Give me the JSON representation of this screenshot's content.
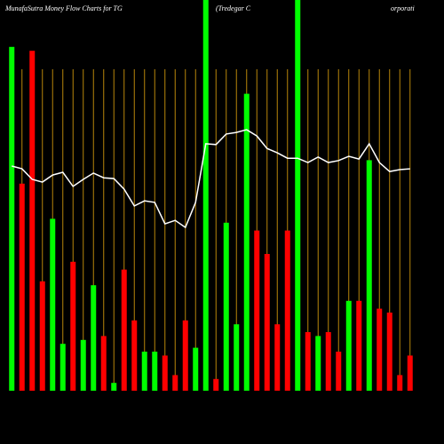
{
  "chart_data": {
    "type": "bar",
    "title": "MunafaSutra  Money Flow  Charts for TG",
    "subtitle": "(Tredegar C",
    "subtitle_tail": "orporati",
    "categories": [
      null,
      null,
      null,
      null,
      null,
      null,
      null,
      null,
      null,
      null,
      null,
      null,
      null,
      null,
      null,
      null,
      null,
      null,
      null,
      null,
      null,
      null,
      null,
      null,
      null,
      null,
      null,
      null,
      null,
      null,
      null,
      null,
      null,
      null,
      null,
      null,
      null,
      null,
      null,
      null
    ],
    "values": [
      88,
      53,
      87,
      28,
      44,
      12,
      33,
      13,
      27,
      14,
      2,
      31,
      18,
      10,
      10,
      9,
      4,
      18,
      11,
      100,
      3,
      43,
      17,
      76,
      41,
      35,
      17,
      41,
      100,
      15,
      14,
      15,
      10,
      23,
      23,
      59,
      21,
      20,
      4,
      9
    ],
    "colors": [
      "#00ff00",
      "#ff0000",
      "#ff0000",
      "#ff0000",
      "#00ff00",
      "#00ff00",
      "#ff0000",
      "#00ff00",
      "#00ff00",
      "#ff0000",
      "#00ff00",
      "#ff0000",
      "#ff0000",
      "#00ff00",
      "#00ff00",
      "#ff0000",
      "#ff0000",
      "#ff0000",
      "#00ff00",
      "#00ff00",
      "#ff0000",
      "#00ff00",
      "#00ff00",
      "#00ff00",
      "#ff0000",
      "#ff0000",
      "#ff0000",
      "#ff0000",
      "#00ff00",
      "#ff0000",
      "#00ff00",
      "#ff0000",
      "#ff0000",
      "#00ff00",
      "#ff0000",
      "#00ff00",
      "#ff0000",
      "#ff0000",
      "#ff0000",
      "#ff0000"
    ],
    "line": {
      "color": "#ffffff",
      "values": [
        57.5,
        56.8,
        54.1,
        53.4,
        55.2,
        55.9,
        52.3,
        54.1,
        55.7,
        54.5,
        54.3,
        51.6,
        47.3,
        48.6,
        48.2,
        42.7,
        43.6,
        41.8,
        48.2,
        63.2,
        63.0,
        65.7,
        66.1,
        66.8,
        65.2,
        62.0,
        60.9,
        59.5,
        59.5,
        58.4,
        59.8,
        58.4,
        58.9,
        60.0,
        59.3,
        63.2,
        58.4,
        56.1,
        56.6,
        56.8
      ]
    },
    "ylim": [
      0,
      100
    ],
    "grid": true,
    "grid_color": "#b8860b"
  }
}
